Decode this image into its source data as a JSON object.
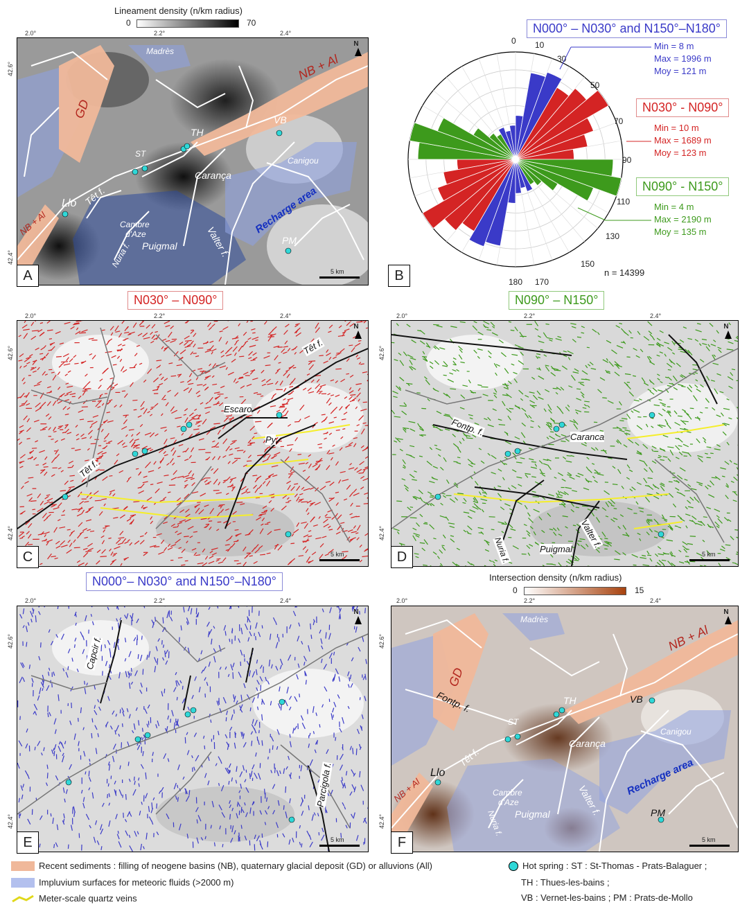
{
  "colors": {
    "sediment": "#f0b89a",
    "impluvium": "#8fa2e0",
    "quartz": "#f5ee2a",
    "hotspring": "#30d8d8",
    "nnw": "#3a3ac8",
    "ene": "#d42424",
    "wnw": "#3d9a1c"
  },
  "panelA": {
    "letter": "A",
    "colorbar_title": "Lineament density (n/km radius)",
    "colorbar_min": "0",
    "colorbar_max": "70",
    "ticks_x": [
      "2.0°",
      "2.2°",
      "2.4°"
    ],
    "ticks_y": [
      "42.6°",
      "42.4°"
    ],
    "north": "N",
    "scale": "5 km",
    "labels": {
      "madres": "Madrès",
      "gd": "GD",
      "nbal_ne": "NB + Al",
      "vb": "VB",
      "th": "TH",
      "st": "ST",
      "carança": "Carança",
      "canigou": "Canigou",
      "tet": "Têt f.",
      "llo": "Llo",
      "nbal_sw": "NB + Al",
      "cambre1": "Cambre",
      "cambre2": "d'Aze",
      "recharge": "Recharge area",
      "puigmal": "Puigmal",
      "nuria": "Nuria f.",
      "valter": "Valter f.",
      "pm": "PM"
    }
  },
  "panelB": {
    "letter": "B",
    "n_label": "n = 14399",
    "angles": [
      "0",
      "10",
      "30",
      "50",
      "70",
      "90",
      "110",
      "130",
      "150",
      "170",
      "180"
    ],
    "groups": [
      {
        "title": "N000° – N030° and N150°–N180°",
        "min": "Min = 8 m",
        "max": "Max =  1996 m",
        "moy": "Moy = 121 m"
      },
      {
        "title": "N030° - N090°",
        "min": "Min = 10 m",
        "max": "Max =  1689 m",
        "moy": "Moy = 123 m"
      },
      {
        "title": "N090° - N150°",
        "min": "Min = 4 m",
        "max": "Max =  2190 m",
        "moy": "Moy = 135 m"
      }
    ]
  },
  "chart_data": {
    "type": "rose",
    "n": 14399,
    "bins_deg": [
      0,
      10,
      20,
      30,
      40,
      50,
      60,
      70,
      80,
      90,
      100,
      110,
      120,
      130,
      140,
      150,
      160,
      170
    ],
    "relative_length": [
      0.45,
      0.9,
      0.95,
      0.85,
      0.95,
      1.1,
      0.85,
      0.75,
      0.6,
      1.0,
      1.1,
      0.85,
      0.5,
      0.35,
      0.3,
      0.35,
      0.3,
      0.35
    ],
    "group_of_bin": [
      "nnw",
      "nnw",
      "nnw",
      "ene",
      "ene",
      "ene",
      "ene",
      "ene",
      "ene",
      "wnw",
      "wnw",
      "wnw",
      "wnw",
      "wnw",
      "wnw",
      "nnw",
      "nnw",
      "nnw"
    ]
  },
  "panelC": {
    "letter": "C",
    "title": "N030° – N090°",
    "labels": {
      "tet_ne": "Têt f.",
      "escaro": "Escaro",
      "py": "Py",
      "tet_sw": "Têt f."
    }
  },
  "panelD": {
    "letter": "D",
    "title": "N090° – N150°",
    "labels": {
      "fontp": "Fontp. f.",
      "caranca": "Caranca",
      "puigmal": "Puigmal",
      "nuria": "Nuria f.",
      "valter": "Valter f."
    }
  },
  "panelE": {
    "letter": "E",
    "title": "N000°– N030° and N150°–N180°",
    "labels": {
      "capcir": "Capcir f.",
      "parcigola": "Parcigola f."
    }
  },
  "panelF": {
    "letter": "F",
    "colorbar_title": "Intersection density (n/km radius)",
    "colorbar_min": "0",
    "colorbar_max": "15",
    "labels": {
      "madres": "Madrès",
      "gd": "GD",
      "nbal_ne": "NB + Al",
      "vb": "VB",
      "th": "TH",
      "st": "ST",
      "fontp": "Fontp. f.",
      "caranca": "Carança",
      "canigou": "Canigou",
      "tet": "Têt f.",
      "llo": "Llo",
      "nbal_sw": "NB + Al",
      "cambre1": "Cambre",
      "cambre2": "d'Aze",
      "recharge": "Recharge area",
      "puigmal": "Puigmal",
      "nuria": "Nuria f.",
      "valter": "Valter f.",
      "pm": "PM"
    }
  },
  "legend": {
    "sediment": "Recent sediments : filling of neogene basins (NB), quaternary glacial deposit (GD) or alluvions (All)",
    "impluvium": "Impluvium surfaces for meteoric fluids (>2000 m)",
    "quartz": "Meter-scale quartz veins",
    "hotspring1": "Hot spring : ST : St-Thomas - Prats-Balaguer ;",
    "hotspring2": "TH : Thues-les-bains ;",
    "hotspring3": "VB : Vernet-les-bains ; PM : Prats-de-Mollo"
  }
}
